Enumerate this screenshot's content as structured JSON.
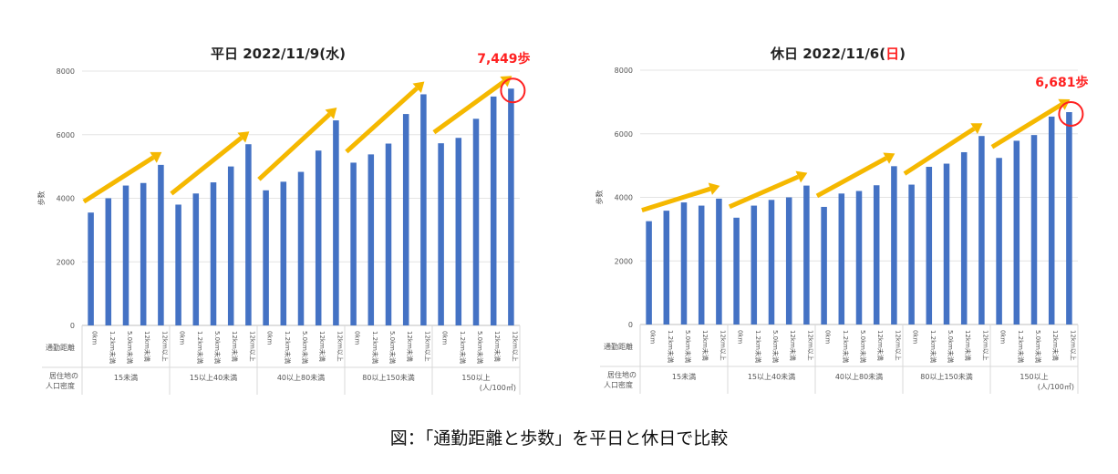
{
  "caption": "図：「通勤距離と歩数」を平日と休日で比較",
  "colors": {
    "bar": "#4472C4",
    "arrow": "#F5B800",
    "highlight": "#FF2020",
    "grid": "#E4E4E4",
    "text": "#555555"
  },
  "chart_data": [
    {
      "type": "bar",
      "title_prefix": "平日  2022/11/9(",
      "title_day": "水",
      "title_suffix": ")",
      "title_day_color": "#222222",
      "ylabel": "歩数",
      "ylim": [
        0,
        8000
      ],
      "yticks": [
        "0",
        "2000",
        "4000",
        "6000",
        "8000"
      ],
      "row_label_distance": "通勤距離",
      "row_label_density": [
        "居住地の",
        "人口密度"
      ],
      "distance_categories": [
        "0km",
        "1.2km未満",
        "5.0km未満",
        "12km未満",
        "12km以上"
      ],
      "groups": [
        "15未満",
        "15以上40未満",
        "40以上80未満",
        "80以上150未満",
        "150以上"
      ],
      "unit_note": "(人/100㎡)",
      "values": [
        3550,
        4000,
        4400,
        4480,
        5050,
        3800,
        4150,
        4500,
        5000,
        5700,
        4250,
        4520,
        4830,
        5500,
        6450,
        5120,
        5380,
        5720,
        6650,
        7270,
        5730,
        5900,
        6500,
        7200,
        7449
      ],
      "highlight_label": "7,449歩",
      "highlight_index": 24
    },
    {
      "type": "bar",
      "title_prefix": "休日  2022/11/6(",
      "title_day": "日",
      "title_suffix": ")",
      "title_day_color": "#FF2020",
      "ylabel": "歩数",
      "ylim": [
        0,
        8000
      ],
      "yticks": [
        "0",
        "2000",
        "4000",
        "6000",
        "8000"
      ],
      "row_label_distance": "通勤距離",
      "row_label_density": [
        "居住地の",
        "人口密度"
      ],
      "distance_categories": [
        "0km",
        "1.2km未満",
        "5.0km未満",
        "12km未満",
        "12km以上"
      ],
      "groups": [
        "15未満",
        "15以上40未満",
        "40以上80未満",
        "80以上150未満",
        "150以上"
      ],
      "unit_note": "(人/100㎡)",
      "values": [
        3250,
        3580,
        3840,
        3740,
        3960,
        3360,
        3740,
        3920,
        4000,
        4370,
        3700,
        4120,
        4200,
        4380,
        4980,
        4400,
        4960,
        5060,
        5420,
        5930,
        5240,
        5780,
        5960,
        6540,
        6681
      ],
      "highlight_label": "6,681歩",
      "highlight_index": 24
    }
  ]
}
